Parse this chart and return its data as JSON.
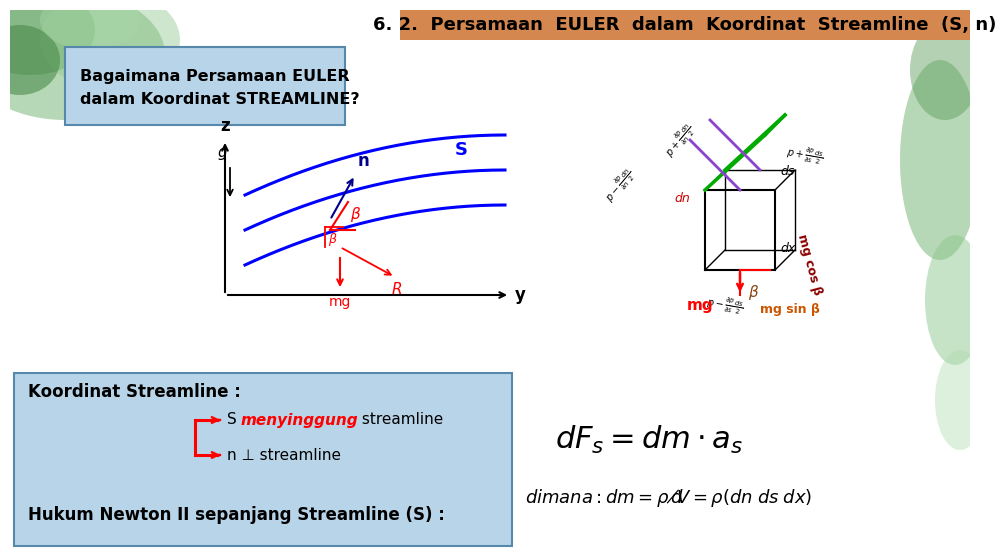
{
  "title": "6. 2.  Persamaan  EULER  dalam  Koordinat  Streamline  (S, n)",
  "title_bg": "#D4874E",
  "title_color": "black",
  "title_fontsize": 13,
  "slide_bg": "#FFFFFF",
  "left_box_bg": "#B8D4E8",
  "left_box_border": "#5588AA",
  "bottom_box_text1": "Koordinat Streamline :",
  "bottom_box_text4": "Hukum Newton II sepanjang Streamline (S) :"
}
